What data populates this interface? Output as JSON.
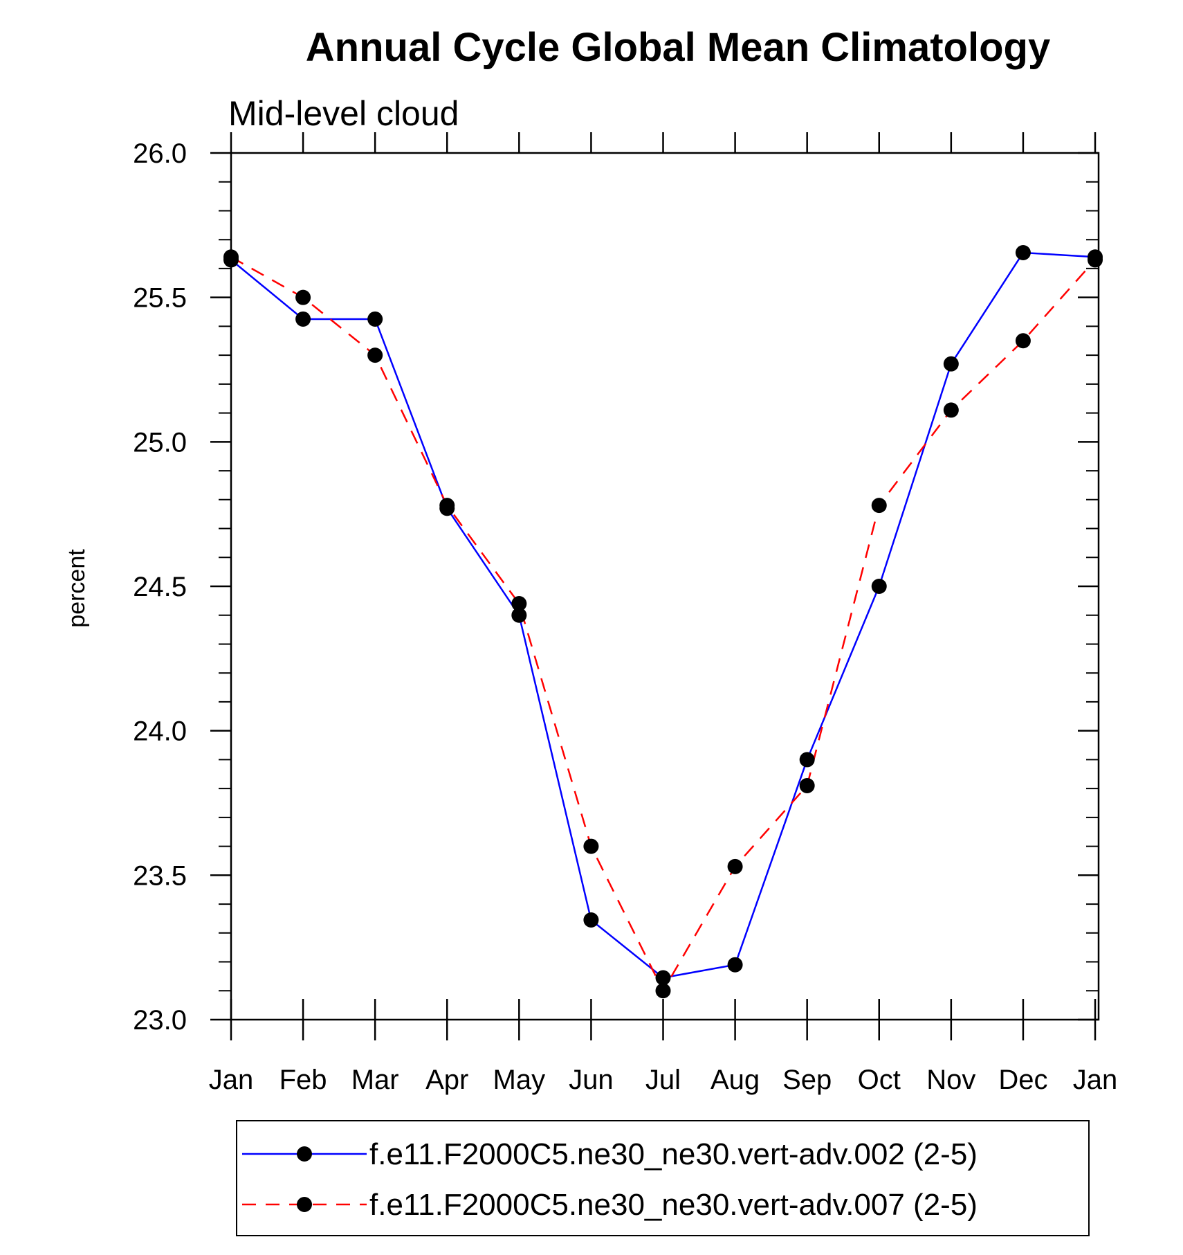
{
  "chart_data": {
    "type": "line",
    "title": "Annual Cycle Global Mean Climatology",
    "subtitle": "Mid-level cloud",
    "xlabel": "",
    "ylabel": "percent",
    "categories": [
      "Jan",
      "Feb",
      "Mar",
      "Apr",
      "May",
      "Jun",
      "Jul",
      "Aug",
      "Sep",
      "Oct",
      "Nov",
      "Dec",
      "Jan"
    ],
    "ylim": [
      23.0,
      26.0
    ],
    "yticks": [
      "23.0",
      "23.5",
      "24.0",
      "24.5",
      "25.0",
      "25.5",
      "26.0"
    ],
    "grid": false,
    "legend_position": "bottom",
    "series": [
      {
        "name": "f.e11.F2000C5.ne30_ne30.vert-adv.002 (2-5)",
        "color": "#0000ff",
        "style": "solid",
        "marker": "filled-circle",
        "values": [
          25.63,
          25.425,
          25.425,
          24.77,
          24.4,
          23.345,
          23.145,
          23.19,
          23.9,
          24.5,
          25.27,
          25.655,
          25.64
        ]
      },
      {
        "name": "f.e11.F2000C5.ne30_ne30.vert-adv.007 (2-5)",
        "color": "#ff0000",
        "style": "dashed",
        "marker": "filled-circle",
        "values": [
          25.64,
          25.5,
          25.3,
          24.78,
          24.44,
          23.6,
          23.1,
          23.53,
          23.81,
          24.78,
          25.11,
          25.35,
          25.63
        ]
      }
    ]
  }
}
